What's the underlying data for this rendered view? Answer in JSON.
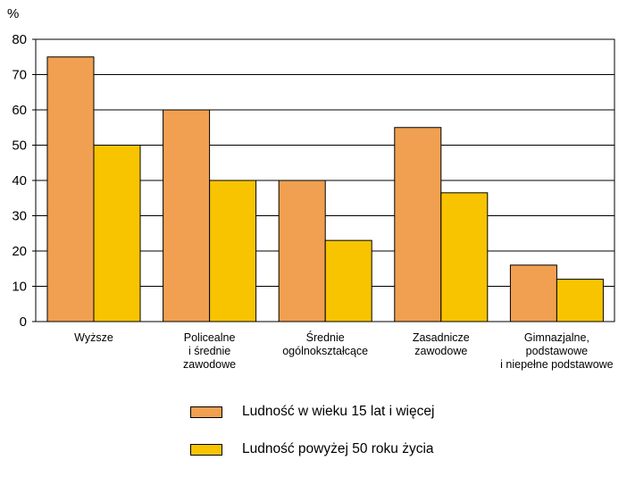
{
  "chart_data": {
    "type": "bar",
    "ylabel": "%",
    "ylim": [
      0,
      80
    ],
    "yticks": [
      "0",
      "10",
      "20",
      "30",
      "40",
      "50",
      "60",
      "70",
      "80"
    ],
    "grid": true,
    "categories": [
      [
        "Wyższe"
      ],
      [
        "Policealne",
        "i średnie",
        "zawodowe"
      ],
      [
        "Średnie",
        "ogólnokształcące"
      ],
      [
        "Zasadnicze",
        "zawodowe"
      ],
      [
        "Gimnazjalne,",
        "podstawowe",
        "i niepełne podstawowe"
      ]
    ],
    "series": [
      {
        "name": "Ludność w wieku 15 lat i więcej",
        "color": "#f0a050",
        "values": [
          75,
          60,
          40,
          55,
          16
        ]
      },
      {
        "name": "Ludność powyżej 50 roku życia",
        "color": "#f8c400",
        "values": [
          50,
          40,
          23,
          36.5,
          12
        ]
      }
    ],
    "legend_position": "bottom"
  }
}
